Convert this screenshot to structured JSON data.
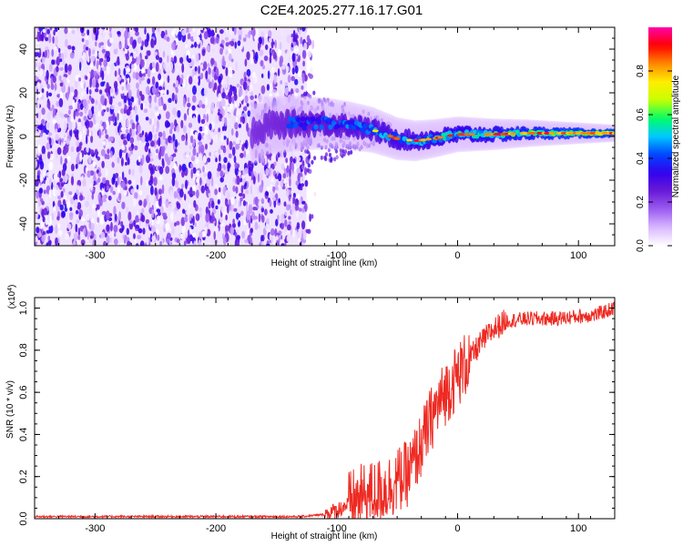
{
  "title": "C2E4.2025.277.16.17.G01",
  "colors": {
    "snr_line": "#ee2a22",
    "colormap": [
      "#ffffff",
      "#d9b8ff",
      "#9b5cf0",
      "#6a1bd6",
      "#3300ee",
      "#0044ff",
      "#00c8ff",
      "#00ff66",
      "#c8ff00",
      "#ffee00",
      "#ff8800",
      "#ff0000",
      "#ff00aa"
    ]
  },
  "chart_data": [
    {
      "type": "heatmap",
      "name": "spectrogram",
      "xlabel": "Height of straight line (km)",
      "ylabel": "Frequency (Hz)",
      "xlim": [
        -350,
        130
      ],
      "ylim": [
        -50,
        50
      ],
      "x_ticks": [
        -300,
        -200,
        -100,
        0,
        100
      ],
      "x_tick_labels": [
        "-300",
        "-200",
        "-100",
        "0",
        "100"
      ],
      "y_ticks": [
        -40,
        -20,
        0,
        20,
        40
      ],
      "y_tick_labels": [
        "-40",
        "-20",
        "0",
        "20",
        "40"
      ],
      "colorbar": {
        "label": "Normalized spectral amplitude",
        "range": [
          0,
          1
        ],
        "ticks": [
          0,
          0.2,
          0.4,
          0.6,
          0.8
        ],
        "tick_labels": [
          "0.0",
          "0.2",
          "0.4",
          "0.6",
          "0.8"
        ]
      },
      "noise_region_km": [
        -350,
        -125
      ],
      "signal_center_hz": [
        {
          "x": -160,
          "y": 5
        },
        {
          "x": -130,
          "y": 6
        },
        {
          "x": -110,
          "y": 6
        },
        {
          "x": -90,
          "y": 5
        },
        {
          "x": -70,
          "y": 3
        },
        {
          "x": -50,
          "y": -1
        },
        {
          "x": -35,
          "y": -2
        },
        {
          "x": -20,
          "y": -1
        },
        {
          "x": 0,
          "y": 1
        },
        {
          "x": 30,
          "y": 1
        },
        {
          "x": 60,
          "y": 1.5
        },
        {
          "x": 100,
          "y": 1.5
        },
        {
          "x": 130,
          "y": 1.5
        }
      ]
    },
    {
      "type": "line",
      "name": "snr",
      "xlabel": "Height of straight line (km)",
      "ylabel": "SNR (10 * v/v)",
      "y_multiplier_label": "(x10",
      "y_multiplier_exp": "4",
      "xlim": [
        -350,
        130
      ],
      "ylim": [
        0,
        1.05
      ],
      "x_ticks": [
        -300,
        -200,
        -100,
        0,
        100
      ],
      "x_tick_labels": [
        "-300",
        "-200",
        "-100",
        "0",
        "100"
      ],
      "y_ticks": [
        0,
        0.2,
        0.4,
        0.6,
        0.8,
        1.0
      ],
      "y_tick_labels": [
        "0.0",
        "0.2",
        "0.4",
        "0.6",
        "0.8",
        "1.0"
      ],
      "series": [
        {
          "name": "SNR",
          "x": [
            -350,
            -300,
            -200,
            -130,
            -110,
            -100,
            -90,
            -80,
            -70,
            -60,
            -50,
            -40,
            -30,
            -20,
            -10,
            0,
            10,
            20,
            30,
            40,
            60,
            80,
            100,
            115,
            130
          ],
          "y": [
            0.01,
            0.01,
            0.01,
            0.01,
            0.02,
            0.04,
            0.07,
            0.1,
            0.12,
            0.14,
            0.18,
            0.22,
            0.35,
            0.5,
            0.6,
            0.68,
            0.76,
            0.84,
            0.9,
            0.94,
            0.95,
            0.95,
            0.96,
            0.97,
            1.0
          ]
        }
      ]
    }
  ]
}
